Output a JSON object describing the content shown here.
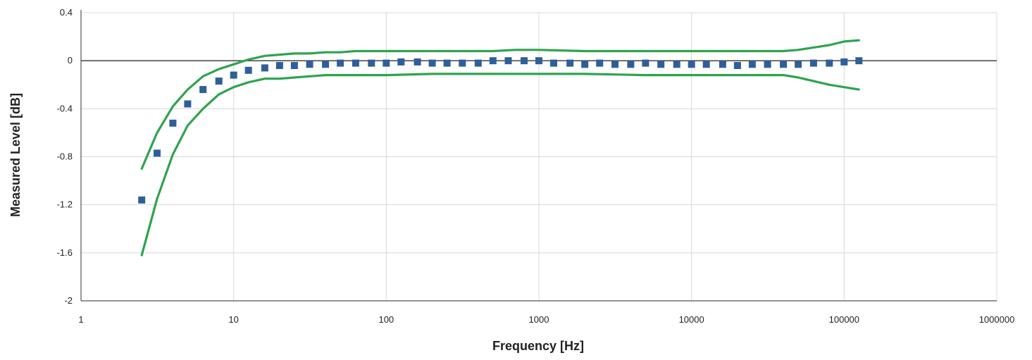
{
  "chart_data": {
    "type": "scatter",
    "title": "",
    "xlabel": "Frequency [Hz]",
    "ylabel": "Measured Level [dB]",
    "x_scale": "log",
    "xlim": [
      1,
      1000000
    ],
    "ylim": [
      -2,
      0.4
    ],
    "x_ticks": [
      "1",
      "10",
      "100",
      "1000",
      "10000",
      "100000",
      "1000000"
    ],
    "y_ticks": [
      "0.4",
      "0",
      "-0.4",
      "-0.8",
      "-1.2",
      "-1.6",
      "-2"
    ],
    "grid": true,
    "legend": "none",
    "colors": {
      "limits": "#2ea44f",
      "points": "#2f5f9a",
      "zero_line": "#333333",
      "grid": "#d8d8d8"
    },
    "series": [
      {
        "type": "line",
        "role": "upper-limit",
        "x": [
          2.5,
          3.15,
          4,
          5,
          6.3,
          8,
          10,
          12.5,
          16,
          20,
          25,
          31.5,
          40,
          50,
          63,
          80,
          100,
          200,
          500,
          700,
          1000,
          2000,
          5000,
          10000,
          20000,
          40000,
          50000,
          63000,
          80000,
          100000,
          125000
        ],
        "values": [
          -0.9,
          -0.6,
          -0.38,
          -0.24,
          -0.13,
          -0.07,
          -0.03,
          0.01,
          0.04,
          0.05,
          0.06,
          0.06,
          0.07,
          0.07,
          0.08,
          0.08,
          0.08,
          0.08,
          0.08,
          0.09,
          0.09,
          0.08,
          0.08,
          0.08,
          0.08,
          0.08,
          0.09,
          0.11,
          0.13,
          0.16,
          0.17
        ]
      },
      {
        "type": "line",
        "role": "lower-limit",
        "x": [
          2.5,
          3.15,
          4,
          5,
          6.3,
          8,
          10,
          12.5,
          16,
          20,
          25,
          31.5,
          40,
          50,
          100,
          200,
          500,
          1000,
          2000,
          5000,
          10000,
          20000,
          40000,
          50000,
          63000,
          80000,
          100000,
          125000
        ],
        "values": [
          -1.62,
          -1.15,
          -0.78,
          -0.54,
          -0.4,
          -0.28,
          -0.22,
          -0.18,
          -0.15,
          -0.15,
          -0.14,
          -0.13,
          -0.12,
          -0.12,
          -0.12,
          -0.11,
          -0.11,
          -0.11,
          -0.11,
          -0.12,
          -0.12,
          -0.12,
          -0.12,
          -0.14,
          -0.17,
          -0.2,
          -0.22,
          -0.24
        ]
      },
      {
        "type": "scatter",
        "role": "measured",
        "x": [
          2.5,
          3.15,
          4,
          5,
          6.3,
          8,
          10,
          12.5,
          16,
          20,
          25,
          31.5,
          40,
          50,
          63,
          80,
          100,
          125,
          160,
          200,
          250,
          315,
          400,
          500,
          630,
          800,
          1000,
          1250,
          1600,
          2000,
          2500,
          3150,
          4000,
          5000,
          6300,
          8000,
          10000,
          12500,
          16000,
          20000,
          25000,
          31500,
          40000,
          50000,
          63000,
          80000,
          100000,
          125000
        ],
        "values": [
          -1.16,
          -0.77,
          -0.52,
          -0.36,
          -0.24,
          -0.17,
          -0.12,
          -0.08,
          -0.06,
          -0.04,
          -0.04,
          -0.03,
          -0.03,
          -0.02,
          -0.02,
          -0.02,
          -0.02,
          -0.01,
          -0.01,
          -0.02,
          -0.02,
          -0.02,
          -0.02,
          0.0,
          0.0,
          0.0,
          0.0,
          -0.02,
          -0.02,
          -0.03,
          -0.02,
          -0.03,
          -0.03,
          -0.02,
          -0.03,
          -0.03,
          -0.03,
          -0.03,
          -0.03,
          -0.04,
          -0.03,
          -0.03,
          -0.03,
          -0.03,
          -0.02,
          -0.02,
          -0.01,
          0.0
        ]
      }
    ]
  }
}
